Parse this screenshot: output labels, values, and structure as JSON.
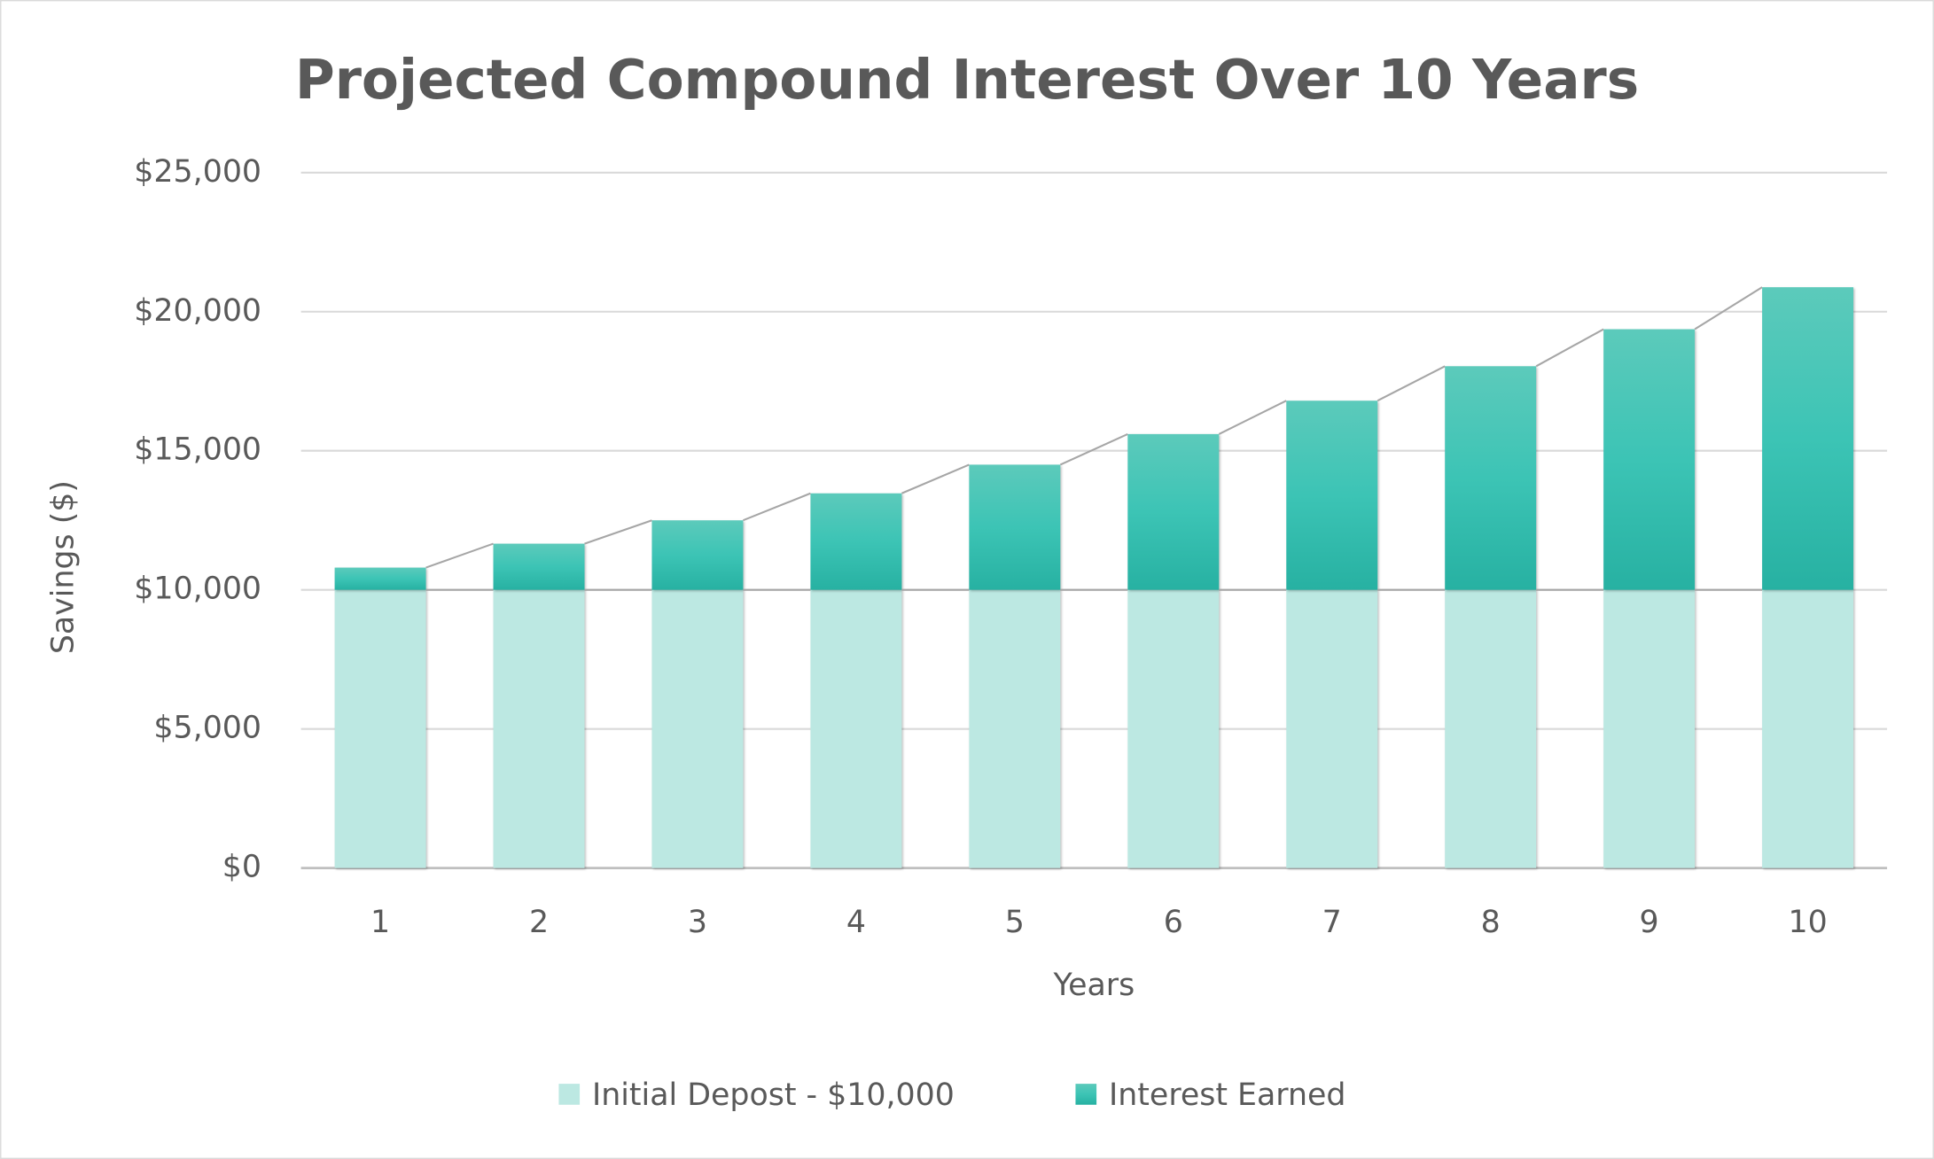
{
  "chart_data": {
    "type": "stacked_bar",
    "title": "Projected Compound Interest Over 10 Years",
    "x_label": "Years",
    "y_label": "Savings ($)",
    "categories": [
      "1",
      "2",
      "3",
      "4",
      "5",
      "6",
      "7",
      "8",
      "9",
      "10"
    ],
    "series": [
      {
        "name": "Initial Depost - $10,000",
        "color": "#bce8e2",
        "values": [
          10000,
          10000,
          10000,
          10000,
          10000,
          10000,
          10000,
          10000,
          10000,
          10000
        ]
      },
      {
        "name": "Interest Earned",
        "color": "#2ab5a5",
        "values": [
          800,
          1660,
          2500,
          3470,
          4500,
          5600,
          6800,
          8040,
          9370,
          10880
        ]
      }
    ],
    "ylim": [
      0,
      25000
    ],
    "yticks": [
      {
        "value": 0,
        "label": "$0"
      },
      {
        "value": 5000,
        "label": "$5,000"
      },
      {
        "value": 10000,
        "label": "$10,000"
      },
      {
        "value": 15000,
        "label": "$15,000"
      },
      {
        "value": 20000,
        "label": "$20,000"
      },
      {
        "value": 25000,
        "label": "$25,000"
      }
    ],
    "grid": true,
    "legend": "bottom"
  }
}
